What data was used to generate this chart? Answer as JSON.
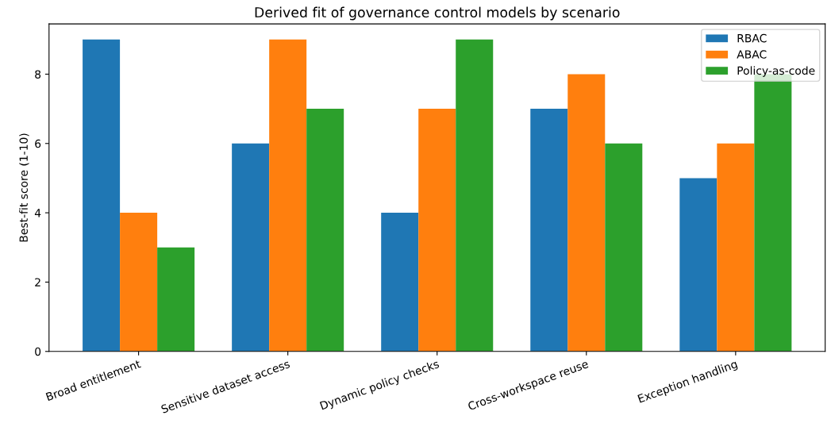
{
  "chart_data": {
    "type": "bar",
    "title": "Derived fit of governance control models by scenario",
    "ylabel": "Best-fit score (1-10)",
    "categories": [
      "Broad entitlement",
      "Sensitive dataset access",
      "Dynamic policy checks",
      "Cross-workspace reuse",
      "Exception handling"
    ],
    "series": [
      {
        "name": "RBAC",
        "color": "#1f77b4",
        "values": [
          9,
          6,
          4,
          7,
          5
        ]
      },
      {
        "name": "ABAC",
        "color": "#ff7f0e",
        "values": [
          4,
          9,
          7,
          8,
          6
        ]
      },
      {
        "name": "Policy-as-code",
        "color": "#2ca02c",
        "values": [
          3,
          7,
          9,
          6,
          8
        ]
      }
    ],
    "ylim": [
      0,
      9.45
    ],
    "yticks": [
      0,
      2,
      4,
      6,
      8
    ],
    "legend": "top right",
    "grid": false
  }
}
